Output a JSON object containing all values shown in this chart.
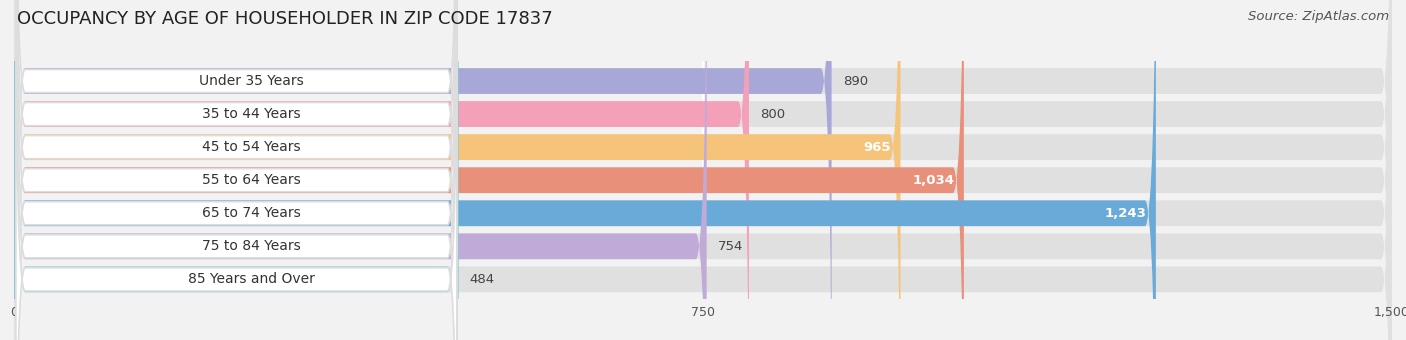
{
  "title": "OCCUPANCY BY AGE OF HOUSEHOLDER IN ZIP CODE 17837",
  "source": "Source: ZipAtlas.com",
  "categories": [
    "Under 35 Years",
    "35 to 44 Years",
    "45 to 54 Years",
    "55 to 64 Years",
    "65 to 74 Years",
    "75 to 84 Years",
    "85 Years and Over"
  ],
  "values": [
    890,
    800,
    965,
    1034,
    1243,
    754,
    484
  ],
  "bar_colors": [
    "#a8a8d8",
    "#f4a0b8",
    "#f5c47a",
    "#e8907a",
    "#6aaad8",
    "#c0aad8",
    "#80ccd4"
  ],
  "xlim": [
    0,
    1500
  ],
  "xticks": [
    0,
    750,
    1500
  ],
  "title_fontsize": 13,
  "source_fontsize": 9.5,
  "label_fontsize": 10,
  "value_fontsize": 9.5,
  "bg_color": "#f2f2f2",
  "bar_bg_color": "#e0e0e0",
  "white_label_bg": "#ffffff"
}
